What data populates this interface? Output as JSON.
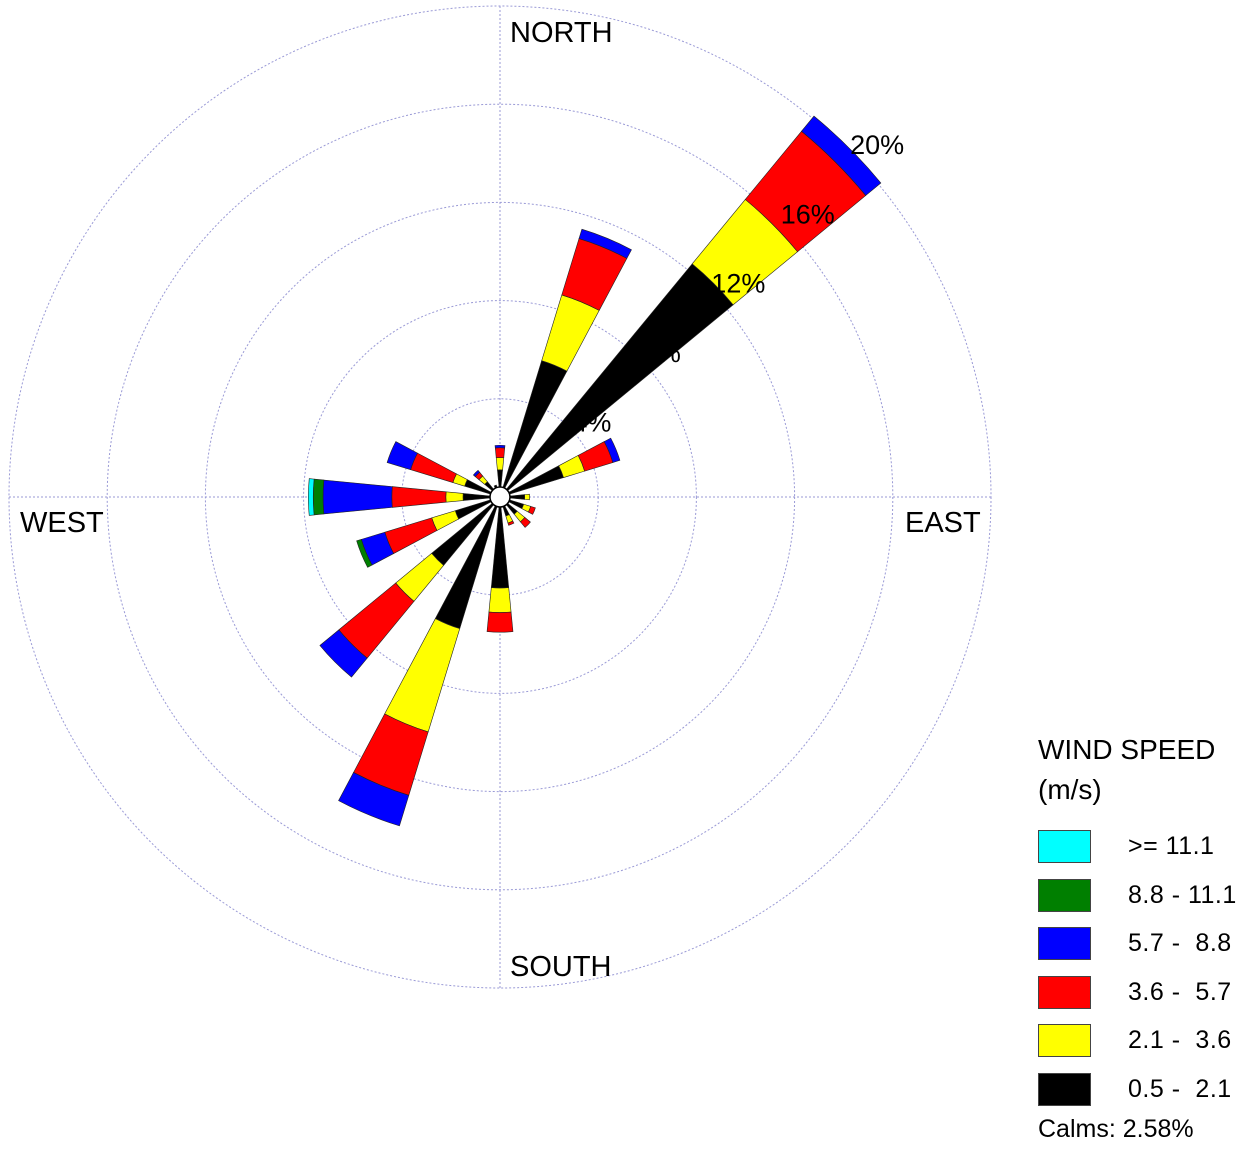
{
  "chart_data": {
    "type": "windrose",
    "compass": {
      "north": "NORTH",
      "east": "EAST",
      "south": "SOUTH",
      "west": "WEST"
    },
    "ring_labels": [
      "4%",
      "8%",
      "12%",
      "16%",
      "20%"
    ],
    "ring_values": [
      4,
      8,
      12,
      16,
      20
    ],
    "rlim": [
      0,
      20
    ],
    "legend": {
      "title_line1": "WIND SPEED",
      "title_line2": "(m/s)",
      "placement": "bottom-right",
      "calms_label": "Calms: 2.58%"
    },
    "calms_percent": 2.58,
    "speed_bins": [
      {
        "label": "0.5 -  2.1",
        "color": "#000000"
      },
      {
        "label": "2.1 -  3.6",
        "color": "#ffff00"
      },
      {
        "label": "3.6 -  5.7",
        "color": "#ff0000"
      },
      {
        "label": "5.7 -  8.8",
        "color": "#0000ff"
      },
      {
        "label": "8.8 - 11.1",
        "color": "#007f00"
      },
      {
        "label": ">= 11.1",
        "color": "#00ffff"
      }
    ],
    "directions_deg": [
      0,
      22.5,
      45,
      67.5,
      90,
      112.5,
      135,
      157.5,
      180,
      202.5,
      225,
      247.5,
      270,
      292.5,
      315,
      337.5
    ],
    "series_by_direction": [
      [
        0.7,
        0.5,
        0.4,
        0.1,
        0,
        0
      ],
      [
        5.4,
        2.8,
        2.4,
        0.4,
        0,
        0
      ],
      [
        11.9,
        3.4,
        3.6,
        0.8,
        0,
        0
      ],
      [
        2.3,
        0.9,
        1.2,
        0.3,
        0,
        0
      ],
      [
        0.6,
        0.2,
        0,
        0,
        0,
        0
      ],
      [
        0.6,
        0.3,
        0.2,
        0,
        0,
        0
      ],
      [
        0.5,
        0.4,
        0.3,
        0,
        0,
        0
      ],
      [
        0.4,
        0.3,
        0.1,
        0,
        0,
        0
      ],
      [
        3.3,
        1,
        0.8,
        0,
        0,
        0
      ],
      [
        5.2,
        4.4,
        2.7,
        1.3,
        0,
        0
      ],
      [
        3.2,
        1.9,
        3,
        1,
        0,
        0
      ],
      [
        1.5,
        1,
        2,
        1,
        0.2,
        0
      ],
      [
        1.1,
        0.7,
        2.2,
        2.8,
        0.4,
        0.2
      ],
      [
        1.1,
        0.5,
        1.8,
        1,
        0,
        0
      ],
      [
        0.4,
        0.3,
        0.2,
        0.1,
        0,
        0
      ],
      [
        0.1,
        0,
        0,
        0,
        0,
        0
      ]
    ],
    "grid": true
  }
}
